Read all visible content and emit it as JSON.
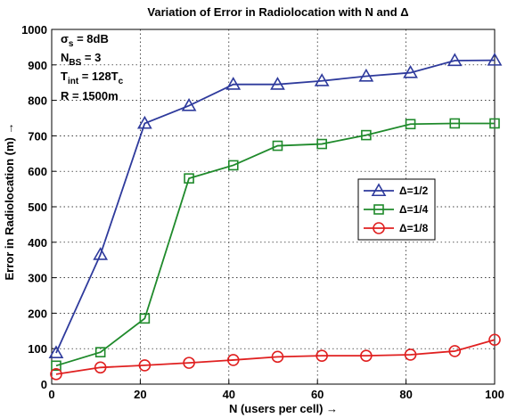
{
  "chart_data": {
    "type": "line",
    "title": "Variation of Error in Radiolocation with N and Δ",
    "xlabel": "N (users per cell) →",
    "ylabel": "Error in Radiolocation (m) →",
    "xlim": [
      0,
      100
    ],
    "ylim": [
      0,
      1000
    ],
    "x_ticks": [
      0,
      20,
      40,
      60,
      80,
      100
    ],
    "y_ticks": [
      0,
      100,
      200,
      300,
      400,
      500,
      600,
      700,
      800,
      900,
      1000
    ],
    "grid": true,
    "legend_position": "right-center",
    "annotations": [
      {
        "base": "σ",
        "sub": "s",
        "rest": " = 8dB"
      },
      {
        "base": "N",
        "sub": "BS",
        "rest": " = 3"
      },
      {
        "base": "T",
        "sub": "int",
        "rest": " = 128T",
        "sub2": "c"
      },
      {
        "base": "R = 1500m",
        "sub": "",
        "rest": ""
      }
    ],
    "series": [
      {
        "name": "Δ=1/2",
        "color": "#2e3a9c",
        "marker": "triangle",
        "x": [
          1,
          11,
          21,
          31,
          41,
          51,
          61,
          71,
          81,
          91,
          100
        ],
        "y": [
          88,
          365,
          735,
          785,
          845,
          845,
          855,
          868,
          878,
          912,
          913
        ]
      },
      {
        "name": "Δ=1/4",
        "color": "#1f8a2b",
        "marker": "square",
        "x": [
          1,
          11,
          21,
          31,
          41,
          51,
          61,
          71,
          81,
          91,
          100
        ],
        "y": [
          52,
          90,
          185,
          580,
          617,
          672,
          677,
          702,
          733,
          735,
          735
        ]
      },
      {
        "name": "Δ=1/8",
        "color": "#e02020",
        "marker": "circle",
        "x": [
          1,
          11,
          21,
          31,
          41,
          51,
          61,
          71,
          81,
          91,
          100
        ],
        "y": [
          28,
          47,
          53,
          60,
          68,
          77,
          80,
          80,
          83,
          93,
          125
        ]
      }
    ]
  }
}
